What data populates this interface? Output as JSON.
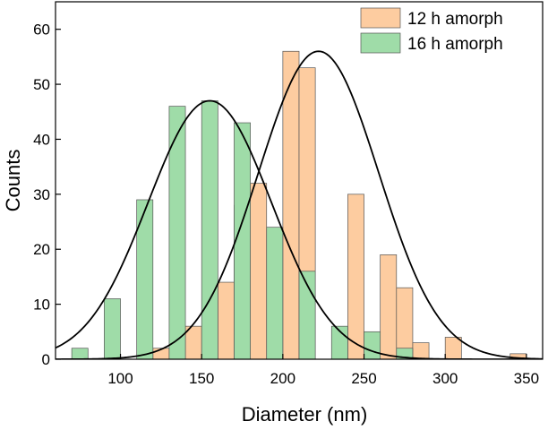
{
  "chart_data": {
    "type": "bar",
    "subtype": "overlapping-histogram-with-gaussian-fits",
    "xlabel": "Diameter (nm)",
    "ylabel": "Counts",
    "xlim": [
      60,
      360
    ],
    "ylim": [
      0,
      65
    ],
    "x_ticks": [
      100,
      150,
      200,
      250,
      300,
      350
    ],
    "y_ticks": [
      0,
      10,
      20,
      30,
      40,
      50,
      60
    ],
    "bin_width": 10,
    "legend_position": "top-right",
    "series": [
      {
        "name": "12 h amorph",
        "color": "#FDCCA0",
        "edge_color": "#555555",
        "bin_centers": [
          125,
          145,
          165,
          175,
          185,
          205,
          215,
          245,
          265,
          275,
          285,
          305,
          345
        ],
        "values": [
          2,
          6,
          14,
          28,
          32,
          56,
          53,
          30,
          19,
          13,
          3,
          4,
          1
        ],
        "fit": {
          "type": "gaussian",
          "amplitude": 56,
          "mean": 222,
          "sigma": 37
        }
      },
      {
        "name": "16 h amorph",
        "color": "#9FDCA8",
        "edge_color": "#555555",
        "bin_centers": [
          75,
          95,
          115,
          135,
          155,
          175,
          195,
          215,
          235,
          255,
          275
        ],
        "values": [
          2,
          11,
          29,
          46,
          47,
          43,
          24,
          16,
          6,
          5,
          2
        ],
        "fit": {
          "type": "gaussian",
          "amplitude": 47,
          "mean": 155,
          "sigma": 38
        }
      }
    ]
  }
}
